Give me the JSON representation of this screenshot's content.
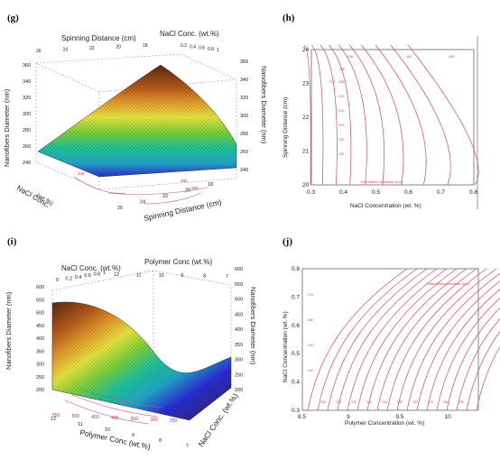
{
  "panels": {
    "g": "(g)",
    "h": "(h)",
    "i": "(i)",
    "j": "(j)"
  },
  "chart_data": [
    {
      "id": "g",
      "type": "surface3d",
      "axes": {
        "z_label": "Nanofibers Diameter (nm)",
        "z_ticks": [
          "240",
          "260",
          "280",
          "300",
          "320",
          "340",
          "360"
        ],
        "z_range": [
          220,
          360
        ],
        "x_label": "Spinning Distance (cm)",
        "x_ticks_top": [
          "26",
          "24",
          "22",
          "20",
          "18"
        ],
        "x_ticks_bottom": [
          "26",
          "24",
          "22",
          "20",
          "18"
        ],
        "y_label": "NaCl Conc. (wt.%)",
        "y_label_top": "NaCl Conc. (wt.%)",
        "y_ticks_top": [
          "0.2",
          "0.4",
          "0.6",
          "0.8",
          "1"
        ],
        "y_label_left_line1": "NaCl Conc.",
        "y_label_left_line2": "(wt.%)",
        "floor_contours": [
          "240",
          "260",
          "280"
        ]
      },
      "colors": [
        "#2b2bd6",
        "#23a7c8",
        "#1ec39a",
        "#7fd23a",
        "#e8e640",
        "#e59a2c",
        "#b5581a",
        "#5a2a10"
      ]
    },
    {
      "id": "h",
      "type": "contour",
      "xlabel": "NaCl Concentration (wt. %)",
      "ylabel": "Spinning Distance (cm)",
      "xlim": [
        0.3,
        0.8
      ],
      "ylim": [
        20,
        24
      ],
      "xticks": [
        "0.3",
        "0.4",
        "0.5",
        "0.6",
        "0.7",
        "0.8"
      ],
      "yticks": [
        "20",
        "21",
        "22",
        "23",
        "24"
      ],
      "contour_labels": [
        "200",
        "205",
        "210",
        "215",
        "220",
        "225",
        "230",
        "245",
        "260",
        "265",
        "270"
      ],
      "legend": "Nanofibers Diameter (nm)",
      "line_color": "#d9465a"
    },
    {
      "id": "i",
      "type": "surface3d",
      "axes": {
        "z_label": "Nanofibers Diameter (nm)",
        "z_ticks": [
          "200",
          "250",
          "300",
          "350",
          "400",
          "450",
          "500",
          "550",
          "600"
        ],
        "z_range": [
          200,
          600
        ],
        "x_label": "Polymer Conc (wt.%)",
        "x_label_top": "Polymer Conc (wt.%)",
        "x_ticks_top": [
          "12",
          "11",
          "10",
          "9",
          "8",
          "7"
        ],
        "x_ticks_bottom": [
          "12",
          "11",
          "10",
          "9",
          "8",
          "7"
        ],
        "y_label_top": "NaCl Conc. (wt.%)",
        "y_ticks_top": [
          "0",
          "0.2",
          "0.4",
          "0.6",
          "0.8",
          "1"
        ],
        "y_label": "NaCl Conc. (wt.%)",
        "floor_contours": [
          "550",
          "500",
          "450",
          "400",
          "350",
          "300",
          "250"
        ]
      },
      "colors": [
        "#5a2a10",
        "#b5581a",
        "#e59a2c",
        "#e8e640",
        "#7fd23a",
        "#1ec39a",
        "#23a7c8",
        "#2b2bd6",
        "#3a2a4a"
      ]
    },
    {
      "id": "j",
      "type": "contour",
      "xlabel": "Polymer Concentration (wt. %)",
      "ylabel": "NaCl Concentration (wt. %)",
      "xlim": [
        8.5,
        10.3
      ],
      "ylim": [
        0.3,
        0.8
      ],
      "xticks": [
        "8.5",
        "9",
        "9.5",
        "10"
      ],
      "yticks": [
        "0.3",
        "0.4",
        "0.5",
        "0.6",
        "0.7",
        "0.8"
      ],
      "contour_labels": [
        "200",
        "210",
        "220",
        "230",
        "240",
        "250",
        "260",
        "270",
        "280",
        "290"
      ],
      "legend": "Nanofibers Diameter (nm)",
      "line_color": "#d9465a"
    }
  ]
}
